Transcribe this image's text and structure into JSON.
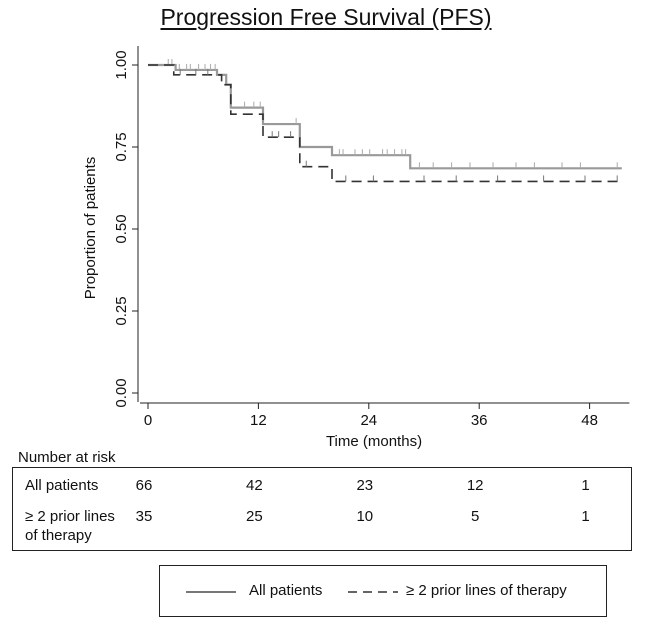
{
  "chart_data": {
    "type": "line",
    "title": "Progression Free Survival (PFS)",
    "xlabel": "Time (months)",
    "ylabel": "Proportion of patients",
    "xlim": [
      0,
      52
    ],
    "ylim": [
      0,
      1
    ],
    "x_ticks": [
      "0",
      "12",
      "24",
      "36",
      "48"
    ],
    "x_tick_values": [
      0,
      12,
      24,
      36,
      48
    ],
    "y_ticks": [
      "0.00",
      "0.25",
      "0.50",
      "0.75",
      "1.00"
    ],
    "y_tick_values": [
      0,
      0.25,
      0.5,
      0.75,
      1.0
    ],
    "grid": false,
    "series": [
      {
        "name": "All patients",
        "style": "solid",
        "color": "#999999",
        "steps": [
          [
            0,
            1.0
          ],
          [
            3,
            0.985
          ],
          [
            7.5,
            0.97
          ],
          [
            8.5,
            0.94
          ],
          [
            9,
            0.87
          ],
          [
            12.5,
            0.82
          ],
          [
            16.5,
            0.75
          ],
          [
            20,
            0.725
          ],
          [
            28.5,
            0.685
          ],
          [
            51.5,
            0.685
          ]
        ],
        "censor_times": [
          2.2,
          2.6,
          3.4,
          4.2,
          4.6,
          5.5,
          6.2,
          6.8,
          7.3,
          10.5,
          11.5,
          12.2,
          16.1,
          20.8,
          21.2,
          22.5,
          23.3,
          24.1,
          25.5,
          26,
          26.8,
          27.6,
          28,
          29.5,
          31,
          33,
          35,
          37.5,
          40,
          42,
          45,
          47,
          51
        ]
      },
      {
        "name": "≥ 2 prior lines of therapy",
        "style": "dashed",
        "color": "#333333",
        "steps": [
          [
            0,
            1.0
          ],
          [
            2.8,
            0.97
          ],
          [
            8,
            0.94
          ],
          [
            9,
            0.85
          ],
          [
            12.5,
            0.78
          ],
          [
            16.5,
            0.69
          ],
          [
            20,
            0.645
          ],
          [
            51.5,
            0.645
          ]
        ],
        "censor_times": [
          3.5,
          5.2,
          6.5,
          13.5,
          14.2,
          15.5,
          17.2,
          21.5,
          24.5,
          30,
          33.5,
          38,
          43,
          47.5,
          51
        ]
      }
    ],
    "risk_table": {
      "heading": "Number at risk",
      "times": [
        0,
        12,
        24,
        36,
        48
      ],
      "rows": [
        {
          "label": "All patients",
          "counts": [
            "66",
            "42",
            "23",
            "12",
            "1"
          ]
        },
        {
          "label_lines": [
            "≥ 2 prior lines",
            "of therapy"
          ],
          "counts": [
            "35",
            "25",
            "10",
            "5",
            "1"
          ]
        }
      ]
    },
    "legend_position": "bottom"
  }
}
